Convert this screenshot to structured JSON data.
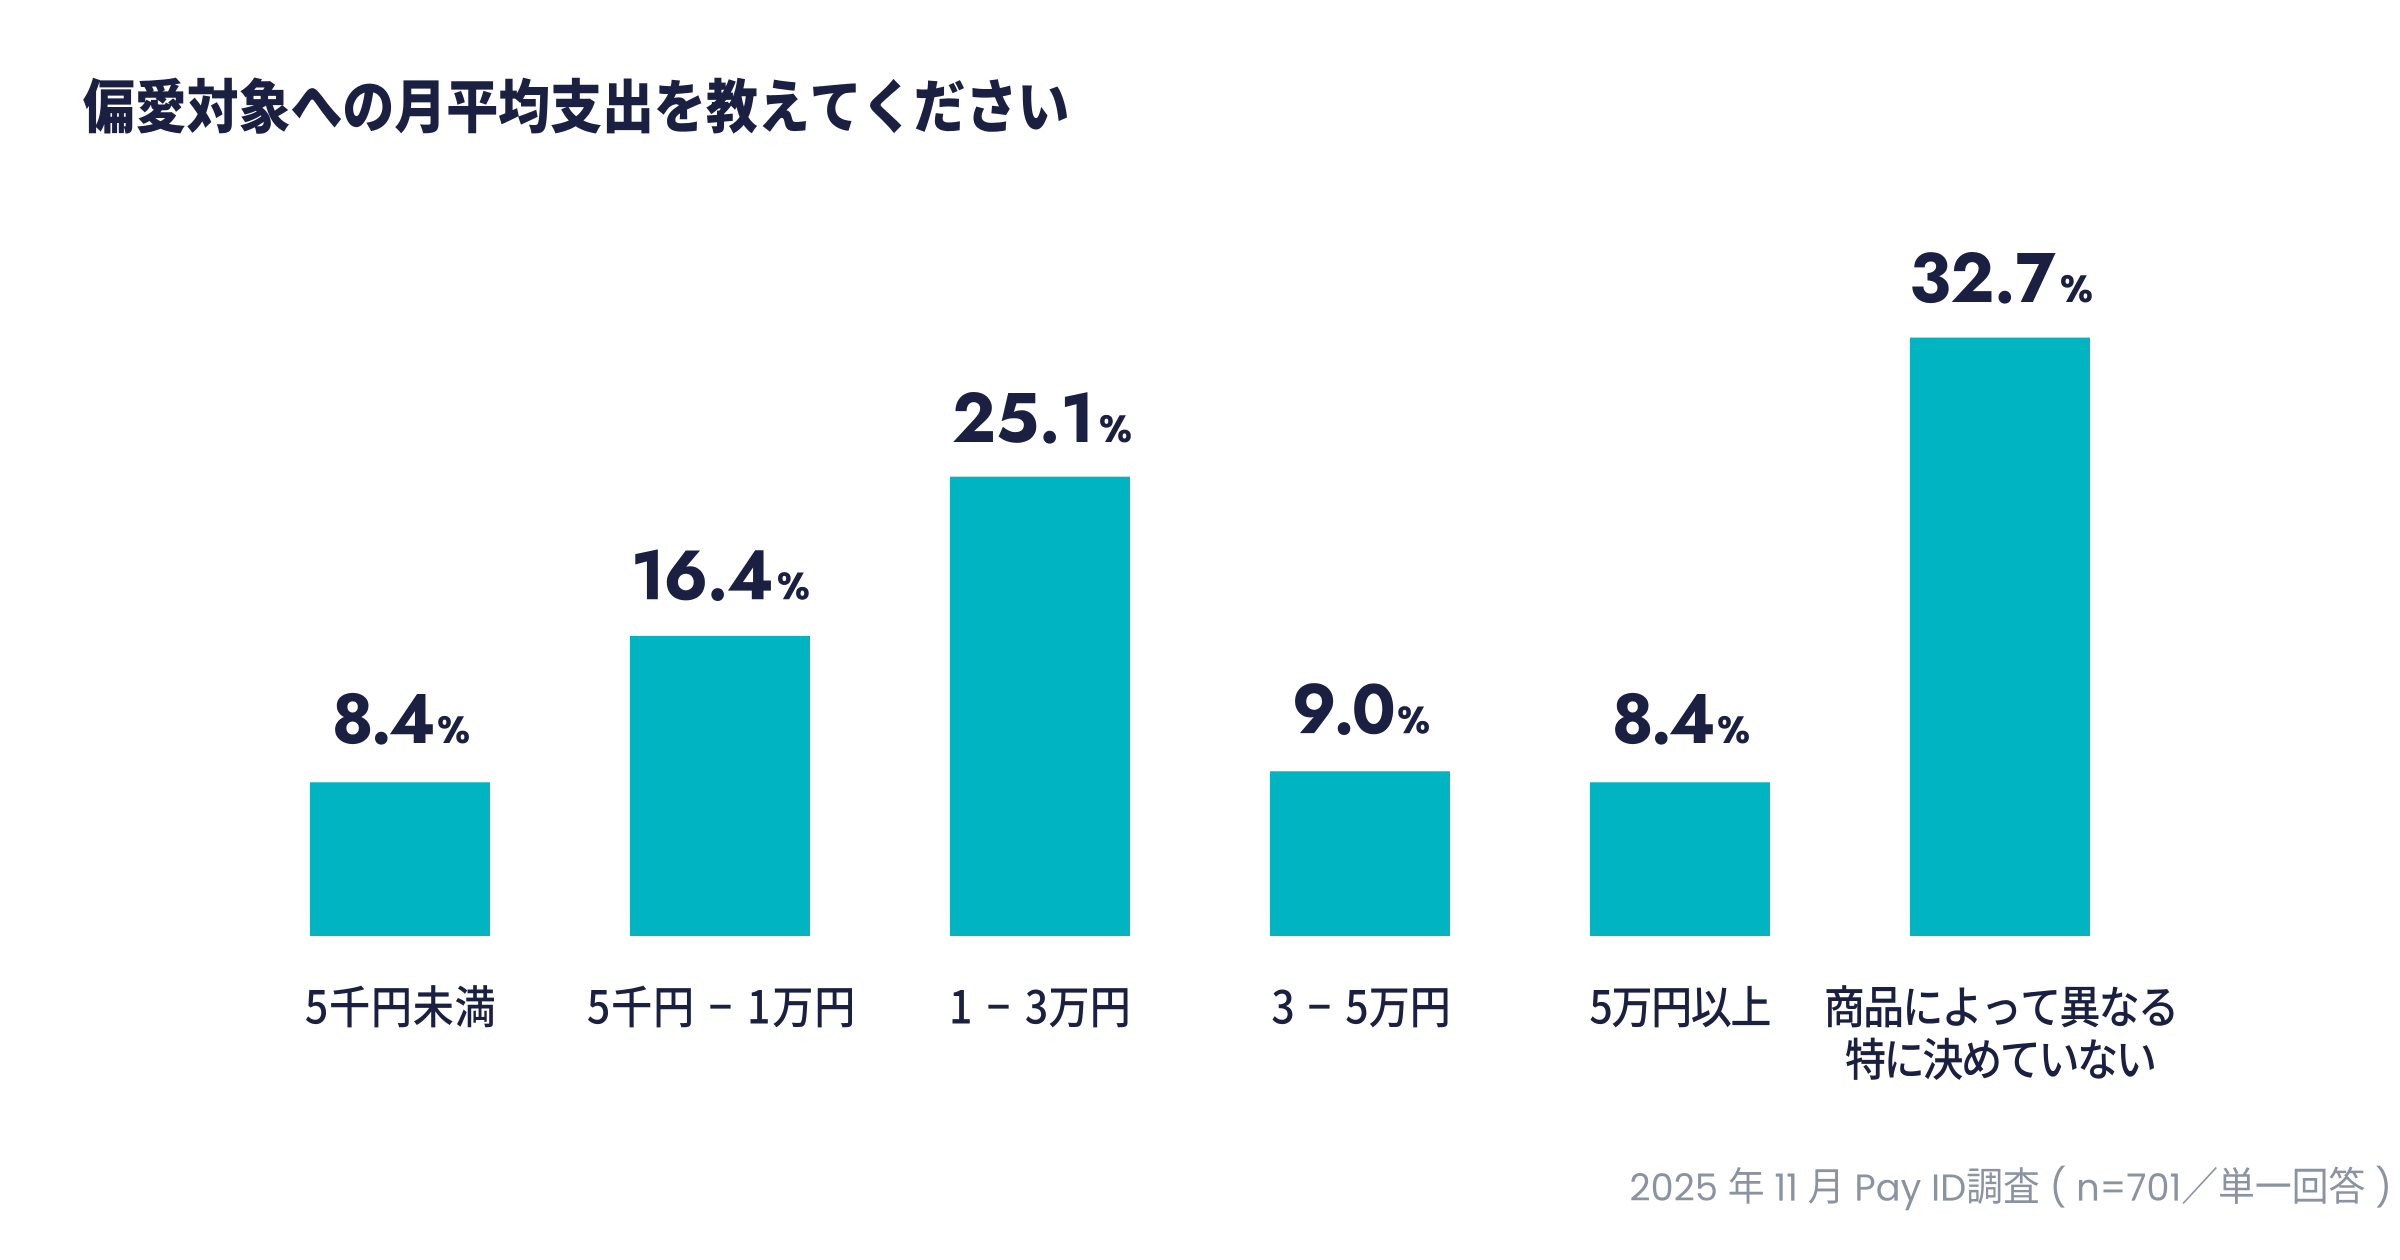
{
  "title": "偏愛対象への月平均支出を教えてください",
  "chart_data": {
    "type": "bar",
    "title": "偏愛対象への月平均支出を教えてください",
    "categories": [
      "5千円未満",
      "5千円 − 1万円",
      "1 − 3万円",
      "3 − 5万円",
      "5万円以上",
      "商品によって異なる\n特に決めていない"
    ],
    "values": [
      8.4,
      16.4,
      25.1,
      9.0,
      8.4,
      32.7
    ],
    "data_labels": [
      "8.4%",
      "16.4%",
      "25.1%",
      "9.0%",
      "8.4%",
      "32.7%"
    ],
    "unit": "%",
    "xlabel": "",
    "ylabel": "",
    "ylim": [
      0,
      35
    ],
    "grid": false,
    "legend": null,
    "bar_color": "#00b4c2",
    "label_color": "#1b2043",
    "orientation": "vertical"
  },
  "footer": {
    "source_note": "2025 年 11 月 Pay ID調査 ( n=701／単一回答 )"
  },
  "colors": {
    "background": "#ffffff",
    "bar": "#00b4c2",
    "text": "#1b2043",
    "footer_text": "#8b93a3"
  }
}
